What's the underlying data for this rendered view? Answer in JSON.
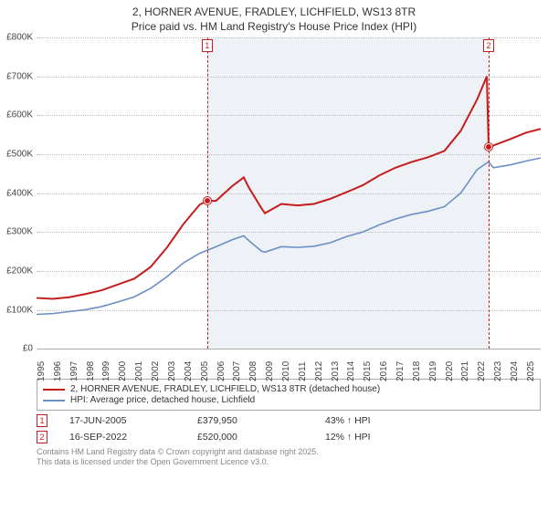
{
  "title_line1": "2, HORNER AVENUE, FRADLEY, LICHFIELD, WS13 8TR",
  "title_line2": "Price paid vs. HM Land Registry's House Price Index (HPI)",
  "chart": {
    "type": "line",
    "background_color": "#ffffff",
    "shaded_region_color": "#eef1f6",
    "grid_color": "#bfbfbf",
    "axis_color": "#999999",
    "x_years": [
      1995,
      1996,
      1997,
      1998,
      1999,
      2000,
      2001,
      2002,
      2003,
      2004,
      2005,
      2006,
      2007,
      2008,
      2009,
      2010,
      2011,
      2012,
      2013,
      2014,
      2015,
      2016,
      2017,
      2018,
      2019,
      2020,
      2021,
      2022,
      2023,
      2024,
      2025
    ],
    "x_min": 1995,
    "x_max": 2025.9,
    "y_ticks": [
      0,
      100000,
      200000,
      300000,
      400000,
      500000,
      600000,
      700000,
      800000
    ],
    "y_tick_labels": [
      "£0",
      "£100K",
      "£200K",
      "£300K",
      "£400K",
      "£500K",
      "£600K",
      "£700K",
      "£800K"
    ],
    "y_min": 0,
    "y_max": 800000,
    "shaded_start_year": 2005.46,
    "shaded_end_year": 2022.71,
    "series": [
      {
        "name": "property",
        "label": "2, HORNER AVENUE, FRADLEY, LICHFIELD, WS13 8TR (detached house)",
        "color": "#c51d1d",
        "line_width": 2,
        "points": [
          [
            1995,
            130000
          ],
          [
            1996,
            128000
          ],
          [
            1997,
            132000
          ],
          [
            1998,
            140000
          ],
          [
            1999,
            150000
          ],
          [
            2000,
            165000
          ],
          [
            2001,
            180000
          ],
          [
            2002,
            210000
          ],
          [
            2003,
            260000
          ],
          [
            2004,
            320000
          ],
          [
            2005,
            370000
          ],
          [
            2005.46,
            379950
          ],
          [
            2006,
            380000
          ],
          [
            2007,
            418000
          ],
          [
            2007.7,
            440000
          ],
          [
            2008,
            415000
          ],
          [
            2008.8,
            360000
          ],
          [
            2009,
            348000
          ],
          [
            2010,
            372000
          ],
          [
            2011,
            368000
          ],
          [
            2012,
            372000
          ],
          [
            2013,
            385000
          ],
          [
            2014,
            402000
          ],
          [
            2015,
            420000
          ],
          [
            2016,
            445000
          ],
          [
            2017,
            465000
          ],
          [
            2018,
            480000
          ],
          [
            2019,
            492000
          ],
          [
            2020,
            508000
          ],
          [
            2021,
            560000
          ],
          [
            2022,
            640000
          ],
          [
            2022.6,
            700000
          ],
          [
            2022.71,
            520000
          ],
          [
            2023,
            522000
          ],
          [
            2024,
            538000
          ],
          [
            2025,
            555000
          ],
          [
            2025.9,
            565000
          ]
        ]
      },
      {
        "name": "hpi",
        "label": "HPI: Average price, detached house, Lichfield",
        "color": "#6a8fc5",
        "line_width": 1.6,
        "points": [
          [
            1995,
            88000
          ],
          [
            1996,
            90000
          ],
          [
            1997,
            95000
          ],
          [
            1998,
            100000
          ],
          [
            1999,
            108000
          ],
          [
            2000,
            120000
          ],
          [
            2001,
            133000
          ],
          [
            2002,
            155000
          ],
          [
            2003,
            185000
          ],
          [
            2004,
            220000
          ],
          [
            2005,
            245000
          ],
          [
            2006,
            262000
          ],
          [
            2007,
            280000
          ],
          [
            2007.7,
            290000
          ],
          [
            2008,
            278000
          ],
          [
            2008.8,
            250000
          ],
          [
            2009,
            248000
          ],
          [
            2010,
            262000
          ],
          [
            2011,
            260000
          ],
          [
            2012,
            263000
          ],
          [
            2013,
            272000
          ],
          [
            2014,
            288000
          ],
          [
            2015,
            300000
          ],
          [
            2016,
            318000
          ],
          [
            2017,
            333000
          ],
          [
            2018,
            345000
          ],
          [
            2019,
            353000
          ],
          [
            2020,
            365000
          ],
          [
            2021,
            400000
          ],
          [
            2022,
            460000
          ],
          [
            2022.7,
            480000
          ],
          [
            2023,
            465000
          ],
          [
            2024,
            472000
          ],
          [
            2025,
            482000
          ],
          [
            2025.9,
            490000
          ]
        ]
      }
    ],
    "sale_markers": [
      {
        "id": "1",
        "year": 2005.46,
        "price": 379950
      },
      {
        "id": "2",
        "year": 2022.71,
        "price": 520000
      }
    ]
  },
  "legend": {
    "items": [
      {
        "color": "#c51d1d",
        "label": "2, HORNER AVENUE, FRADLEY, LICHFIELD, WS13 8TR (detached house)"
      },
      {
        "color": "#6a8fc5",
        "label": "HPI: Average price, detached house, Lichfield"
      }
    ]
  },
  "sales_table": {
    "rows": [
      {
        "marker": "1",
        "date": "17-JUN-2005",
        "price": "£379,950",
        "delta": "43% ↑ HPI"
      },
      {
        "marker": "2",
        "date": "16-SEP-2022",
        "price": "£520,000",
        "delta": "12% ↑ HPI"
      }
    ]
  },
  "footer_line1": "Contains HM Land Registry data © Crown copyright and database right 2025.",
  "footer_line2": "This data is licensed under the Open Government Licence v3.0."
}
